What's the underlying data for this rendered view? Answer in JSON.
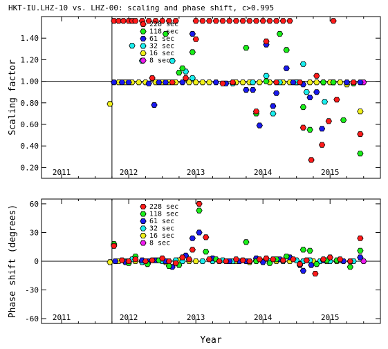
{
  "title": "HKT-IU.LHZ-10 vs. LHZ-00: scaling and phase shift, c>0.995",
  "xlabel": "Year",
  "year_ticks": [
    "2011",
    "2012",
    "2013",
    "2014",
    "2015"
  ],
  "periods": [
    {
      "label": "228 sec",
      "color": "#ff1a1a"
    },
    {
      "label": "118 sec",
      "color": "#1aee1a"
    },
    {
      "label": "61 sec",
      "color": "#1a1aee"
    },
    {
      "label": "32 sec",
      "color": "#1aeeee"
    },
    {
      "label": "16 sec",
      "color": "#f0f01a"
    },
    {
      "label": "8 sec",
      "color": "#ee1aee"
    }
  ],
  "chart_data": [
    {
      "type": "scatter",
      "title": "HKT-IU.LHZ-10 vs. LHZ-00: scaling and phase shift, c>0.995",
      "xlabel": "",
      "ylabel": "Scaling factor",
      "xlim": [
        2010.7,
        2015.75
      ],
      "ylim": [
        0.1,
        1.6
      ],
      "yticks": [
        "0.20",
        "0.40",
        "0.60",
        "0.80",
        "1.00",
        "1.20",
        "1.40"
      ],
      "reference_line": 1.0,
      "marker_line_x": 2011.75,
      "legend": "top-left",
      "series": [
        {
          "name": "228 sec",
          "points": [
            [
              2011.78,
              1.56
            ],
            [
              2011.85,
              1.56
            ],
            [
              2011.92,
              1.56
            ],
            [
              2012.0,
              1.56
            ],
            [
              2012.05,
              1.56
            ],
            [
              2012.1,
              1.56
            ],
            [
              2012.2,
              1.56
            ],
            [
              2012.3,
              1.56
            ],
            [
              2012.4,
              1.56
            ],
            [
              2012.5,
              1.56
            ],
            [
              2012.6,
              1.56
            ],
            [
              2012.7,
              1.56
            ],
            [
              2013.0,
              1.56
            ],
            [
              2013.1,
              1.56
            ],
            [
              2013.2,
              1.56
            ],
            [
              2013.3,
              1.56
            ],
            [
              2013.4,
              1.56
            ],
            [
              2013.5,
              1.56
            ],
            [
              2013.6,
              1.56
            ],
            [
              2013.7,
              1.56
            ],
            [
              2013.8,
              1.56
            ],
            [
              2013.9,
              1.56
            ],
            [
              2014.0,
              1.56
            ],
            [
              2014.1,
              1.56
            ],
            [
              2014.2,
              1.56
            ],
            [
              2014.3,
              1.56
            ],
            [
              2014.4,
              1.56
            ],
            [
              2015.05,
              1.56
            ],
            [
              2012.35,
              1.03
            ],
            [
              2012.65,
              0.99
            ],
            [
              2012.85,
              1.03
            ],
            [
              2013.0,
              1.39
            ],
            [
              2013.4,
              0.98
            ],
            [
              2013.55,
              0.99
            ],
            [
              2013.9,
              0.72
            ],
            [
              2014.05,
              1.37
            ],
            [
              2014.2,
              0.99
            ],
            [
              2014.55,
              0.99
            ],
            [
              2014.6,
              0.57
            ],
            [
              2014.72,
              0.27
            ],
            [
              2014.8,
              1.05
            ],
            [
              2014.88,
              0.41
            ],
            [
              2014.98,
              0.63
            ],
            [
              2015.1,
              0.83
            ],
            [
              2015.35,
              0.99
            ],
            [
              2015.45,
              0.51
            ]
          ]
        },
        {
          "name": "118 sec",
          "points": [
            [
              2012.55,
              1.44
            ],
            [
              2012.75,
              1.08
            ],
            [
              2012.8,
              1.12
            ],
            [
              2012.95,
              1.27
            ],
            [
              2013.75,
              1.31
            ],
            [
              2013.9,
              0.7
            ],
            [
              2014.05,
              1.0
            ],
            [
              2014.25,
              1.44
            ],
            [
              2014.35,
              1.29
            ],
            [
              2014.6,
              0.76
            ],
            [
              2014.7,
              0.55
            ],
            [
              2014.9,
              0.99
            ],
            [
              2015.05,
              0.99
            ],
            [
              2015.2,
              0.64
            ],
            [
              2015.35,
              0.98
            ],
            [
              2015.45,
              0.33
            ]
          ]
        },
        {
          "name": "61 sec",
          "points": [
            [
              2011.78,
              0.99
            ],
            [
              2011.9,
              0.99
            ],
            [
              2012.0,
              0.99
            ],
            [
              2012.3,
              0.98
            ],
            [
              2012.38,
              0.78
            ],
            [
              2012.45,
              0.99
            ],
            [
              2012.55,
              0.99
            ],
            [
              2012.8,
              0.99
            ],
            [
              2012.95,
              1.44
            ],
            [
              2013.3,
              0.99
            ],
            [
              2013.45,
              0.98
            ],
            [
              2013.75,
              0.92
            ],
            [
              2013.85,
              0.92
            ],
            [
              2013.95,
              0.59
            ],
            [
              2014.05,
              1.34
            ],
            [
              2014.15,
              0.77
            ],
            [
              2014.2,
              0.89
            ],
            [
              2014.35,
              1.12
            ],
            [
              2014.45,
              0.99
            ],
            [
              2014.6,
              0.97
            ],
            [
              2014.7,
              0.85
            ],
            [
              2014.8,
              0.9
            ],
            [
              2014.88,
              0.56
            ],
            [
              2015.25,
              0.99
            ],
            [
              2015.45,
              0.99
            ]
          ]
        },
        {
          "name": "32 sec",
          "points": [
            [
              2012.05,
              1.33
            ],
            [
              2012.2,
              1.19
            ],
            [
              2012.65,
              1.19
            ],
            [
              2012.85,
              1.09
            ],
            [
              2012.95,
              1.03
            ],
            [
              2013.55,
              0.98
            ],
            [
              2013.85,
              0.99
            ],
            [
              2014.05,
              1.05
            ],
            [
              2014.15,
              0.7
            ],
            [
              2014.25,
              0.99
            ],
            [
              2014.5,
              0.99
            ],
            [
              2014.6,
              1.16
            ],
            [
              2014.65,
              0.9
            ],
            [
              2014.92,
              0.81
            ],
            [
              2015.05,
              0.99
            ]
          ]
        },
        {
          "name": "16 sec",
          "points": [
            [
              2011.72,
              0.79
            ],
            [
              2011.85,
              0.99
            ],
            [
              2011.95,
              0.99
            ],
            [
              2012.05,
              0.99
            ],
            [
              2012.15,
              0.99
            ],
            [
              2012.25,
              0.99
            ],
            [
              2012.4,
              0.99
            ],
            [
              2012.5,
              0.99
            ],
            [
              2012.6,
              0.99
            ],
            [
              2012.7,
              0.99
            ],
            [
              2012.9,
              0.99
            ],
            [
              2013.0,
              0.99
            ],
            [
              2013.1,
              0.99
            ],
            [
              2013.2,
              0.99
            ],
            [
              2013.6,
              0.99
            ],
            [
              2013.7,
              0.99
            ],
            [
              2013.8,
              0.99
            ],
            [
              2013.95,
              0.99
            ],
            [
              2014.1,
              0.99
            ],
            [
              2014.3,
              0.99
            ],
            [
              2014.4,
              0.99
            ],
            [
              2014.5,
              0.99
            ],
            [
              2014.7,
              0.99
            ],
            [
              2014.8,
              0.99
            ],
            [
              2014.9,
              0.99
            ],
            [
              2015.0,
              0.99
            ],
            [
              2015.15,
              0.99
            ],
            [
              2015.25,
              0.97
            ],
            [
              2015.45,
              0.72
            ]
          ]
        },
        {
          "name": "8 sec",
          "points": [
            [
              2015.5,
              0.99
            ]
          ]
        }
      ]
    },
    {
      "type": "scatter",
      "title": "",
      "xlabel": "Year",
      "ylabel": "Phase shift (degrees)",
      "xlim": [
        2010.7,
        2015.75
      ],
      "ylim": [
        -65,
        65
      ],
      "yticks": [
        "-60",
        "-30",
        "0",
        "30",
        "60"
      ],
      "reference_line": 0,
      "marker_line_x": 2011.75,
      "legend": "top-left",
      "series": [
        {
          "name": "228 sec",
          "points": [
            [
              2011.78,
              16
            ],
            [
              2011.9,
              1
            ],
            [
              2012.0,
              0
            ],
            [
              2012.1,
              2
            ],
            [
              2012.25,
              0
            ],
            [
              2012.35,
              1
            ],
            [
              2012.5,
              3
            ],
            [
              2012.6,
              0
            ],
            [
              2012.7,
              -2
            ],
            [
              2012.8,
              4
            ],
            [
              2012.9,
              2
            ],
            [
              2012.95,
              12
            ],
            [
              2013.05,
              60
            ],
            [
              2013.15,
              25
            ],
            [
              2013.2,
              2
            ],
            [
              2013.35,
              0
            ],
            [
              2013.45,
              0
            ],
            [
              2013.6,
              2
            ],
            [
              2013.7,
              1
            ],
            [
              2013.8,
              0
            ],
            [
              2013.95,
              2
            ],
            [
              2014.05,
              3
            ],
            [
              2014.15,
              2
            ],
            [
              2014.3,
              1
            ],
            [
              2014.45,
              2
            ],
            [
              2014.55,
              -3
            ],
            [
              2014.65,
              1
            ],
            [
              2014.78,
              -13
            ],
            [
              2014.9,
              2
            ],
            [
              2015.0,
              4
            ],
            [
              2015.15,
              2
            ],
            [
              2015.3,
              0
            ],
            [
              2015.45,
              24
            ]
          ]
        },
        {
          "name": "118 sec",
          "points": [
            [
              2011.78,
              18
            ],
            [
              2012.0,
              -2
            ],
            [
              2012.1,
              5
            ],
            [
              2012.28,
              -3
            ],
            [
              2012.45,
              1
            ],
            [
              2012.6,
              -5
            ],
            [
              2012.75,
              -4
            ],
            [
              2013.05,
              53
            ],
            [
              2013.15,
              10
            ],
            [
              2013.3,
              2
            ],
            [
              2013.75,
              20
            ],
            [
              2013.9,
              0
            ],
            [
              2014.1,
              -2
            ],
            [
              2014.2,
              2
            ],
            [
              2014.35,
              5
            ],
            [
              2014.6,
              12
            ],
            [
              2014.7,
              11
            ],
            [
              2014.8,
              -3
            ],
            [
              2014.95,
              1
            ],
            [
              2015.1,
              1
            ],
            [
              2015.3,
              -6
            ],
            [
              2015.45,
              11
            ]
          ]
        },
        {
          "name": "61 sec",
          "points": [
            [
              2011.8,
              0
            ],
            [
              2011.95,
              -1
            ],
            [
              2012.2,
              1
            ],
            [
              2012.3,
              0
            ],
            [
              2012.4,
              1
            ],
            [
              2012.55,
              0
            ],
            [
              2012.65,
              -6
            ],
            [
              2012.85,
              6
            ],
            [
              2012.95,
              24
            ],
            [
              2013.05,
              30
            ],
            [
              2013.25,
              3
            ],
            [
              2013.5,
              0
            ],
            [
              2013.65,
              0
            ],
            [
              2013.75,
              0
            ],
            [
              2013.9,
              3
            ],
            [
              2014.0,
              -1
            ],
            [
              2014.25,
              2
            ],
            [
              2014.4,
              4
            ],
            [
              2014.55,
              -4
            ],
            [
              2014.6,
              -10
            ],
            [
              2014.72,
              -4
            ],
            [
              2014.9,
              1
            ],
            [
              2015.2,
              0
            ],
            [
              2015.45,
              4
            ]
          ]
        },
        {
          "name": "32 sec",
          "points": [
            [
              2011.95,
              0
            ],
            [
              2012.05,
              2
            ],
            [
              2012.2,
              -1
            ],
            [
              2012.5,
              0
            ],
            [
              2012.7,
              1
            ],
            [
              2012.8,
              0
            ],
            [
              2013.1,
              0
            ],
            [
              2013.25,
              0
            ],
            [
              2013.4,
              1
            ],
            [
              2013.55,
              0
            ],
            [
              2013.9,
              1
            ],
            [
              2014.1,
              0
            ],
            [
              2014.3,
              0
            ],
            [
              2014.5,
              1
            ],
            [
              2014.6,
              0
            ],
            [
              2014.7,
              1
            ],
            [
              2014.85,
              0
            ],
            [
              2015.0,
              0
            ],
            [
              2015.15,
              1
            ],
            [
              2015.35,
              0
            ]
          ]
        },
        {
          "name": "16 sec",
          "points": [
            [
              2011.72,
              -1
            ],
            [
              2011.85,
              0
            ],
            [
              2012.1,
              0
            ],
            [
              2012.3,
              0
            ],
            [
              2012.55,
              -1
            ],
            [
              2012.75,
              1
            ],
            [
              2012.9,
              0
            ],
            [
              2013.0,
              0
            ],
            [
              2013.35,
              0
            ],
            [
              2013.6,
              0
            ],
            [
              2013.8,
              -1
            ],
            [
              2014.0,
              0
            ],
            [
              2014.2,
              0
            ],
            [
              2014.4,
              0
            ],
            [
              2014.75,
              0
            ],
            [
              2014.95,
              0
            ],
            [
              2015.1,
              0
            ],
            [
              2015.3,
              0
            ]
          ]
        },
        {
          "name": "8 sec",
          "points": [
            [
              2015.5,
              0
            ]
          ]
        }
      ]
    }
  ]
}
